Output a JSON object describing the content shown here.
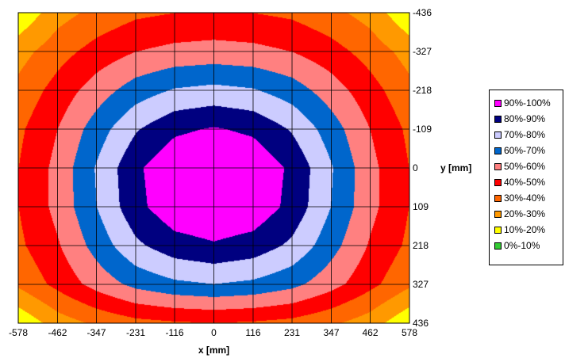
{
  "chart_data": {
    "type": "heatmap",
    "subtype": "contour",
    "title": "",
    "xlabel": "x [mm]",
    "ylabel": "y [mm]",
    "x_ticks": [
      "-578",
      "-462",
      "-347",
      "-231",
      "-116",
      "0",
      "116",
      "231",
      "347",
      "462",
      "578"
    ],
    "y_ticks": [
      "-436",
      "-327",
      "-218",
      "-109",
      "0",
      "109",
      "218",
      "327",
      "436"
    ],
    "xlim": [
      -578,
      578
    ],
    "ylim": [
      -436,
      436
    ],
    "y_axis_position": "right",
    "y_axis_reversed": true,
    "grid": true,
    "legend_position": "right",
    "contour_levels": [
      {
        "label": "90%-100%",
        "min": 90,
        "max": 100,
        "color": "#ff00ff"
      },
      {
        "label": "80%-90%",
        "min": 80,
        "max": 90,
        "color": "#000080"
      },
      {
        "label": "70%-80%",
        "min": 70,
        "max": 80,
        "color": "#ccccff"
      },
      {
        "label": "60%-70%",
        "min": 60,
        "max": 70,
        "color": "#0066cc"
      },
      {
        "label": "50%-60%",
        "min": 50,
        "max": 60,
        "color": "#ff8080"
      },
      {
        "label": "40%-50%",
        "min": 40,
        "max": 50,
        "color": "#ff0000"
      },
      {
        "label": "30%-40%",
        "min": 30,
        "max": 40,
        "color": "#ff6600"
      },
      {
        "label": "20%-30%",
        "min": 20,
        "max": 30,
        "color": "#ff9900"
      },
      {
        "label": "10%-20%",
        "min": 10,
        "max": 20,
        "color": "#ffff00"
      },
      {
        "label": "0%-10%",
        "min": 0,
        "max": 10,
        "color": "#33cc33"
      }
    ],
    "values_percent": [
      [
        12,
        26,
        33,
        38,
        40,
        41,
        40,
        38,
        33,
        26,
        12
      ],
      [
        26,
        36,
        44,
        50,
        53,
        54,
        53,
        50,
        44,
        36,
        26
      ],
      [
        33,
        44,
        55,
        65,
        71,
        73,
        71,
        65,
        55,
        44,
        33
      ],
      [
        38,
        50,
        65,
        79,
        88,
        91,
        88,
        79,
        65,
        50,
        38
      ],
      [
        40,
        53,
        71,
        88,
        98,
        100,
        98,
        88,
        71,
        53,
        40
      ],
      [
        40,
        53,
        70,
        87,
        97,
        99,
        97,
        87,
        70,
        53,
        40
      ],
      [
        38,
        49,
        64,
        78,
        86,
        89,
        86,
        78,
        64,
        49,
        38
      ],
      [
        32,
        43,
        54,
        63,
        68,
        70,
        68,
        63,
        54,
        43,
        32
      ],
      [
        12,
        25,
        32,
        37,
        39,
        40,
        39,
        37,
        32,
        25,
        12
      ]
    ]
  }
}
